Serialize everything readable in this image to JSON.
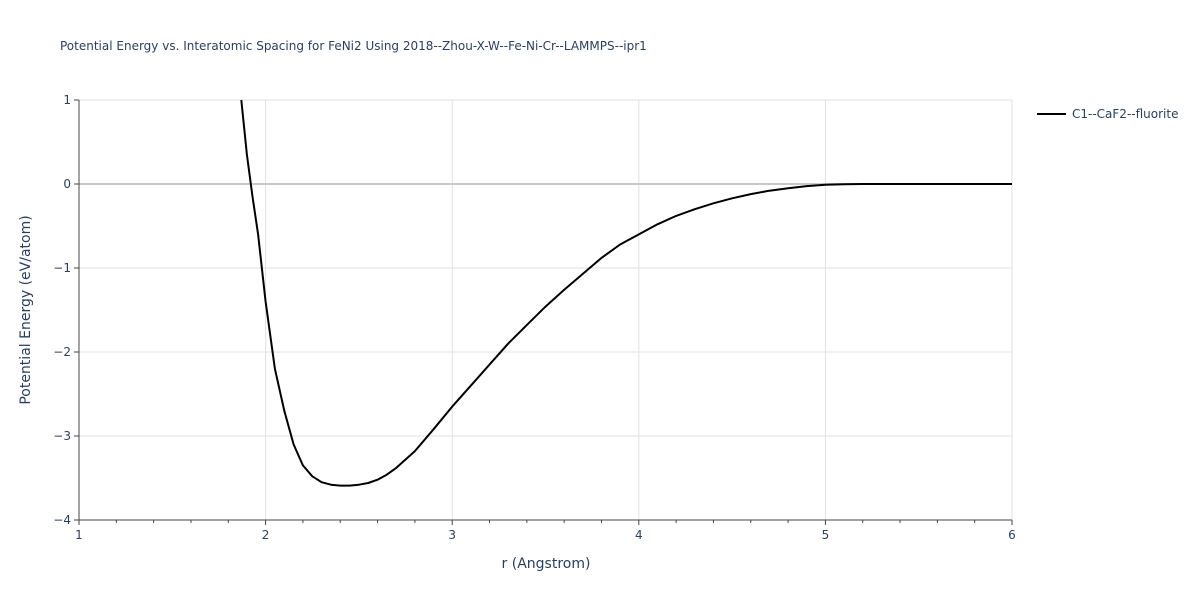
{
  "chart_data": {
    "type": "line",
    "title": "Potential Energy vs. Interatomic Spacing for FeNi2 Using 2018--Zhou-X-W--Fe-Ni-Cr--LAMMPS--ipr1",
    "xlabel": "r (Angstrom)",
    "ylabel": "Potential Energy (eV/atom)",
    "xlim": [
      1,
      6
    ],
    "ylim": [
      -4,
      1
    ],
    "xticks": [
      1,
      2,
      3,
      4,
      5,
      6
    ],
    "xtick_labels": [
      "1",
      "2",
      "3",
      "4",
      "5",
      "6"
    ],
    "yticks": [
      1,
      0,
      -1,
      -2,
      -3,
      -4
    ],
    "ytick_labels": [
      "1",
      "0",
      "−1",
      "−2",
      "−3",
      "−4"
    ],
    "grid": true,
    "legend_position": "top-right",
    "series": [
      {
        "name": "C1--CaF2--fluorite",
        "color": "#000000",
        "x": [
          1.87,
          1.9,
          1.93,
          1.96,
          2.0,
          2.05,
          2.1,
          2.15,
          2.2,
          2.25,
          2.3,
          2.35,
          2.4,
          2.45,
          2.5,
          2.55,
          2.6,
          2.65,
          2.7,
          2.8,
          2.9,
          3.0,
          3.1,
          3.2,
          3.3,
          3.4,
          3.5,
          3.6,
          3.7,
          3.8,
          3.9,
          4.0,
          4.1,
          4.2,
          4.3,
          4.4,
          4.5,
          4.6,
          4.7,
          4.8,
          4.9,
          5.0,
          5.1,
          5.2,
          5.4,
          5.6,
          5.8,
          6.0
        ],
        "y": [
          1.0,
          0.35,
          -0.15,
          -0.6,
          -1.4,
          -2.2,
          -2.7,
          -3.1,
          -3.35,
          -3.48,
          -3.55,
          -3.58,
          -3.59,
          -3.59,
          -3.58,
          -3.56,
          -3.52,
          -3.46,
          -3.38,
          -3.18,
          -2.92,
          -2.65,
          -2.4,
          -2.15,
          -1.9,
          -1.68,
          -1.46,
          -1.26,
          -1.07,
          -0.88,
          -0.72,
          -0.6,
          -0.48,
          -0.38,
          -0.3,
          -0.23,
          -0.17,
          -0.12,
          -0.08,
          -0.05,
          -0.025,
          -0.01,
          -0.003,
          0.0,
          0.0,
          0.0,
          0.0,
          0.0
        ]
      }
    ]
  }
}
